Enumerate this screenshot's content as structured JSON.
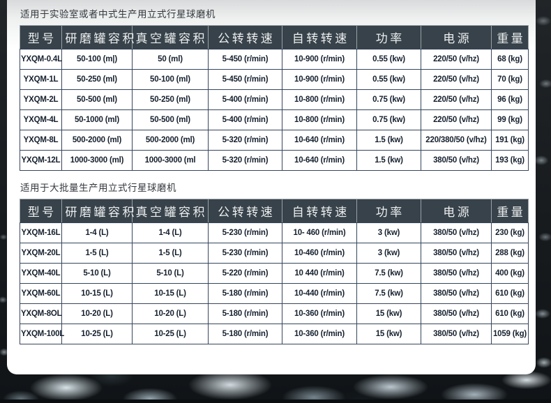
{
  "page": {
    "kind": "product-spec-sheet",
    "colors": {
      "outer_background": "#14181b",
      "panel_background": "#ffffff",
      "panel_top_tint": "#d8dadb",
      "header_bg": "#37424a",
      "header_text": "#eceeef",
      "header_divider": "#98a1a6",
      "cell_border": "#36455c",
      "cell_text": "#16202e",
      "title_text": "#34393e",
      "rock_highlight": "#dcebf0"
    }
  },
  "tables": [
    {
      "title": "适用于实验室或者中式生产用立式行星球磨机",
      "columns": [
        "型号",
        "研磨罐容积",
        "真空罐容积",
        "公转转速",
        "自转转速",
        "功率",
        "电源",
        "重量"
      ],
      "rows": [
        [
          "YXQM-0.4L",
          "50-100 (m|)",
          "50 (ml)",
          "5-450 (r/min)",
          "10-900 (r/min)",
          "0.55 (kw)",
          "220/50 (v/hz)",
          "68 (kg)"
        ],
        [
          "YXQM-1L",
          "50-250 (ml)",
          "50-100 (ml)",
          "5-450 (r/min)",
          "10-900 (r/min)",
          "0.55 (kw)",
          "220/50 (v/hz)",
          "70 (kg)"
        ],
        [
          "YXQM-2L",
          "50-500 (ml)",
          "50-250 (ml)",
          "5-400 (r/min)",
          "10-800 (r/min)",
          "0.75 (kw)",
          "220/50 (v/hz)",
          "96 (kg)"
        ],
        [
          "YXQM-4L",
          "50-1000 (ml)",
          "50-500 (ml)",
          "5-400 (r/min)",
          "10-800 (r/min)",
          "0.75 (kw)",
          "220/50 (v/hz)",
          "99 (kg)"
        ],
        [
          "YXQM-8L",
          "500-2000 (ml)",
          "500-2000 (ml)",
          "5-320 (r/min)",
          "10-640 (r/min)",
          "1.5 (kw)",
          "220/380/50 (v/hz)",
          "191 (kg)"
        ],
        [
          "YXQM-12L",
          "1000-3000 (ml)",
          "1000-3000 (ml",
          "5-320 (r/min)",
          "10-640 (r/min)",
          "1.5 (kw)",
          "380/50 (v/hz)",
          "193 (kg)"
        ]
      ]
    },
    {
      "title": "适用于大批量生产用立式行星球磨机",
      "columns": [
        "型号",
        "研磨罐容积",
        "真空罐容积",
        "公转转速",
        "自转转速",
        "功率",
        "电源",
        "重量"
      ],
      "rows": [
        [
          "YXQM-16L",
          "1-4 (L)",
          "1-4 (L)",
          "5-230 (r/min)",
          "10- 460 (r/min)",
          "3 (kw)",
          "380/50 (v/hz)",
          "230 (kg)"
        ],
        [
          "YXQM-20L",
          "1-5 (L)",
          "1-5 (L)",
          "5-230 (r/min)",
          "10-460 (r/min)",
          "3 (kw)",
          "380/50 (v/hz)",
          "288 (kg)"
        ],
        [
          "YXQM-40L",
          "5-10 (L)",
          "5-10 (L)",
          "5-220 (r/min)",
          "10 440 (r/min)",
          "7.5 (kw)",
          "380/50 (v/hz)",
          "400 (kg)"
        ],
        [
          "YXQM-60L",
          "10-15 (L)",
          "10-15 (L)",
          "5-180 (r/min)",
          "10-440 (r/min)",
          "7.5 (kw)",
          "380/50 (v/hz)",
          "610 (kg)"
        ],
        [
          "YXQM-8OL",
          "10-20 (L)",
          "10-20 (L)",
          "5-180 (r/min)",
          "10-360 (r/min)",
          "15 (kw)",
          "380/50 (v/hz)",
          "610 (kg)"
        ],
        [
          "YXQM-100L",
          "10-25 (L)",
          "10-25 (L)",
          "5-180 (r/min)",
          "10-360 (r/min)",
          "15 (kw)",
          "380/50 (v/hz)",
          "1059 (kg)"
        ]
      ]
    }
  ]
}
